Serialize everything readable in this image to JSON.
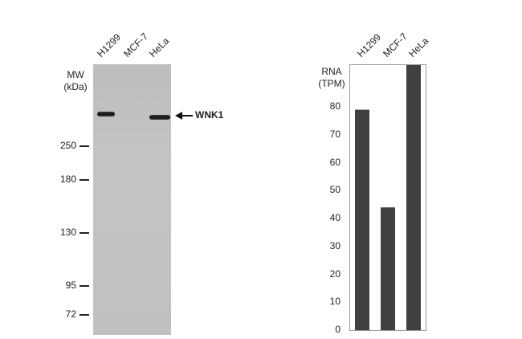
{
  "western_blot": {
    "lanes": [
      "H1299",
      "MCF-7",
      "HeLa"
    ],
    "mw_label_line1": "MW",
    "mw_label_line2": "(kDa)",
    "markers": [
      "250",
      "180",
      "130",
      "95",
      "72"
    ],
    "target_label": "WNK1",
    "band_presence": [
      true,
      false,
      true
    ]
  },
  "chart_data": {
    "type": "bar",
    "categories": [
      "H1299",
      "MCF-7",
      "HeLa"
    ],
    "values": [
      79,
      44,
      95
    ],
    "ylabel_line1": "RNA",
    "ylabel_line2": "(TPM)",
    "yticks": [
      "0",
      "10",
      "20",
      "30",
      "40",
      "50",
      "60",
      "70",
      "80"
    ],
    "ylim": [
      0,
      95
    ],
    "bar_color": "#404040",
    "grid": false
  }
}
